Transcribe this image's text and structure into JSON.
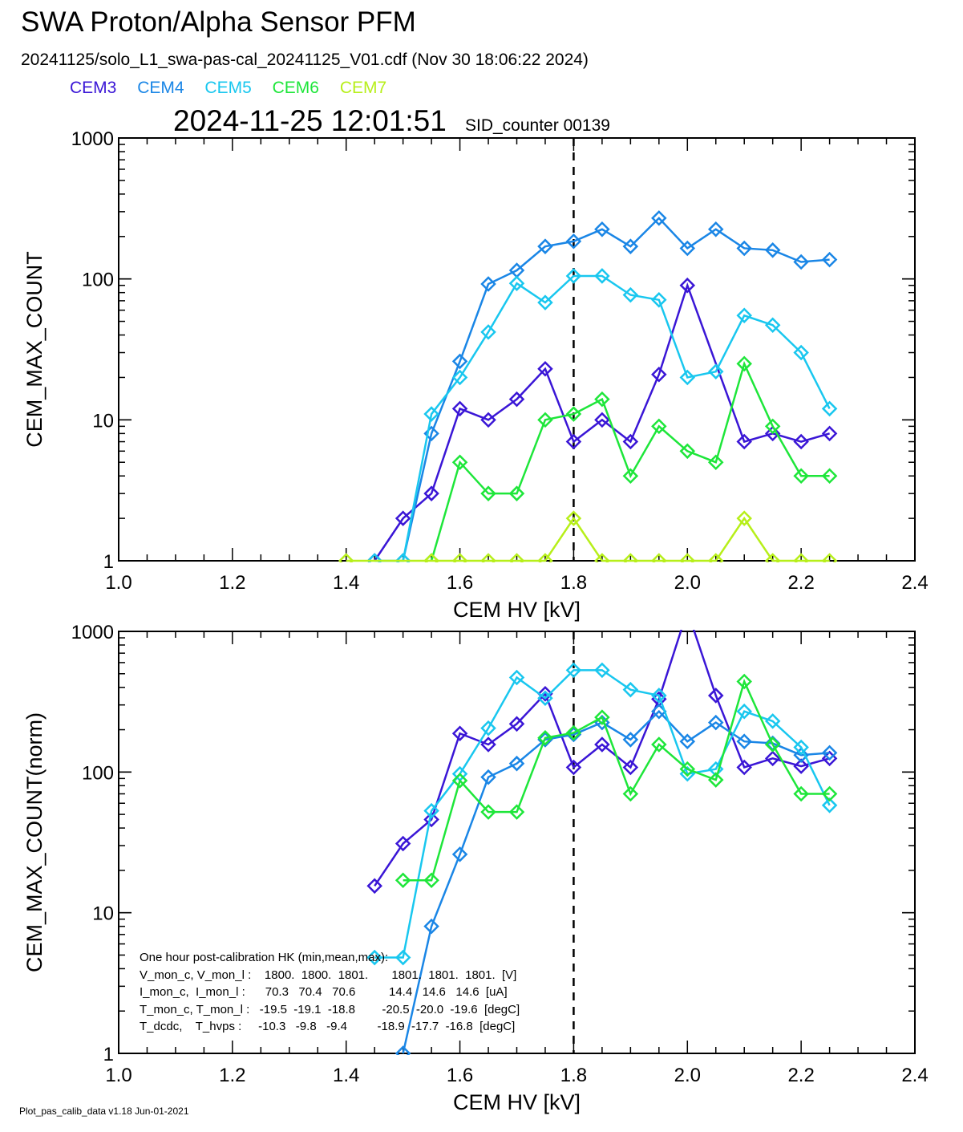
{
  "header": {
    "title": "SWA Proton/Alpha Sensor PFM",
    "subtitle": "20241125/solo_L1_swa-pas-cal_20241125_V01.cdf  (Nov 30 18:06:22 2024)",
    "timestamp": "2024-11-25 12:01:51",
    "sid_counter": "SID_counter 00139"
  },
  "legend": [
    {
      "name": "CEM3",
      "color": "#3a16d6"
    },
    {
      "name": "CEM4",
      "color": "#1a86e6"
    },
    {
      "name": "CEM5",
      "color": "#19c7ef"
    },
    {
      "name": "CEM6",
      "color": "#1ee63a"
    },
    {
      "name": "CEM7",
      "color": "#b7ef1a"
    }
  ],
  "hk_text": {
    "title": "One hour post-calibration HK (min,mean,max):",
    "rows": [
      "V_mon_c, V_mon_l :    1800.  1800.  1801.       1801.  1801.  1801.  [V]",
      "I_mon_c,  I_mon_l :      70.3   70.4   70.6          14.4   14.6   14.6  [uA]",
      "T_mon_c, T_mon_l :   -19.5  -19.1  -18.8        -20.5  -20.0  -19.6  [degC]",
      "T_dcdc,    T_hvps :     -10.3   -9.8   -9.4         -18.9  -17.7  -16.8  [degC]"
    ]
  },
  "footer": "Plot_pas_calib_data v1.18 Jun-01-2021",
  "chart_data": [
    {
      "type": "line",
      "ylog": true,
      "xlabel": "CEM HV [kV]",
      "ylabel": "CEM_MAX_COUNT",
      "xlim": [
        1.0,
        2.4
      ],
      "ylim": [
        1,
        1000
      ],
      "xticks": [
        "1.0",
        "1.2",
        "1.4",
        "1.6",
        "1.8",
        "2.0",
        "2.2",
        "2.4"
      ],
      "yticks": [
        "1",
        "10",
        "100",
        "1000"
      ],
      "vline_x": 1.8,
      "x": [
        1.4,
        1.45,
        1.5,
        1.55,
        1.6,
        1.65,
        1.7,
        1.75,
        1.8,
        1.85,
        1.9,
        1.95,
        2.0,
        2.05,
        2.1,
        2.15,
        2.2,
        2.25
      ],
      "series": [
        {
          "name": "CEM3",
          "values": [
            null,
            1,
            2,
            3,
            12,
            10,
            14,
            23,
            7,
            10,
            7,
            21,
            90,
            null,
            7,
            8,
            7,
            8
          ]
        },
        {
          "name": "CEM4",
          "values": [
            null,
            null,
            1,
            8,
            26,
            92,
            115,
            170,
            185,
            225,
            170,
            270,
            165,
            225,
            165,
            160,
            132,
            137
          ]
        },
        {
          "name": "CEM5",
          "values": [
            null,
            1,
            1,
            11,
            20,
            42,
            93,
            68,
            105,
            105,
            77,
            71,
            20,
            22,
            55,
            47,
            30,
            12
          ]
        },
        {
          "name": "CEM6",
          "values": [
            null,
            null,
            null,
            1,
            5,
            3,
            3,
            10,
            11,
            14,
            4,
            9,
            6,
            5,
            25,
            9,
            4,
            4
          ]
        },
        {
          "name": "CEM7",
          "values": [
            1,
            null,
            null,
            1,
            1,
            1,
            1,
            1,
            2,
            1,
            1,
            1,
            1,
            1,
            2,
            1,
            1,
            1
          ]
        }
      ]
    },
    {
      "type": "line",
      "ylog": true,
      "xlabel": "CEM HV [kV]",
      "ylabel": "CEM_MAX_COUNT(norm)",
      "xlim": [
        1.0,
        2.4
      ],
      "ylim": [
        1,
        1000
      ],
      "xticks": [
        "1.0",
        "1.2",
        "1.4",
        "1.6",
        "1.8",
        "2.0",
        "2.2",
        "2.4"
      ],
      "yticks": [
        "1",
        "10",
        "100",
        "1000"
      ],
      "vline_x": 1.8,
      "x": [
        1.4,
        1.45,
        1.5,
        1.55,
        1.6,
        1.65,
        1.7,
        1.75,
        1.8,
        1.85,
        1.9,
        1.95,
        2.0,
        2.05,
        2.1,
        2.15,
        2.2,
        2.25
      ],
      "series": [
        {
          "name": "CEM3",
          "values": [
            null,
            15.5,
            31,
            46,
            188,
            157,
            220,
            360,
            108,
            157,
            108,
            330,
            1400,
            350,
            108,
            125,
            110,
            125
          ]
        },
        {
          "name": "CEM4",
          "values": [
            null,
            null,
            1,
            8,
            26,
            92,
            115,
            170,
            185,
            225,
            170,
            270,
            165,
            225,
            165,
            160,
            132,
            137
          ]
        },
        {
          "name": "CEM5",
          "values": [
            null,
            4.8,
            4.8,
            53,
            97,
            205,
            470,
            335,
            530,
            530,
            385,
            350,
            97,
            105,
            270,
            230,
            150,
            58
          ]
        },
        {
          "name": "CEM6",
          "values": [
            null,
            null,
            17,
            17,
            87,
            52,
            52,
            175,
            190,
            245,
            70,
            157,
            105,
            88,
            440,
            157,
            70,
            70
          ]
        },
        {
          "name": "CEM7",
          "values": [
            null,
            null,
            null,
            null,
            null,
            null,
            null,
            null,
            null,
            null,
            null,
            null,
            null,
            null,
            null,
            null,
            null,
            null
          ]
        }
      ]
    }
  ]
}
